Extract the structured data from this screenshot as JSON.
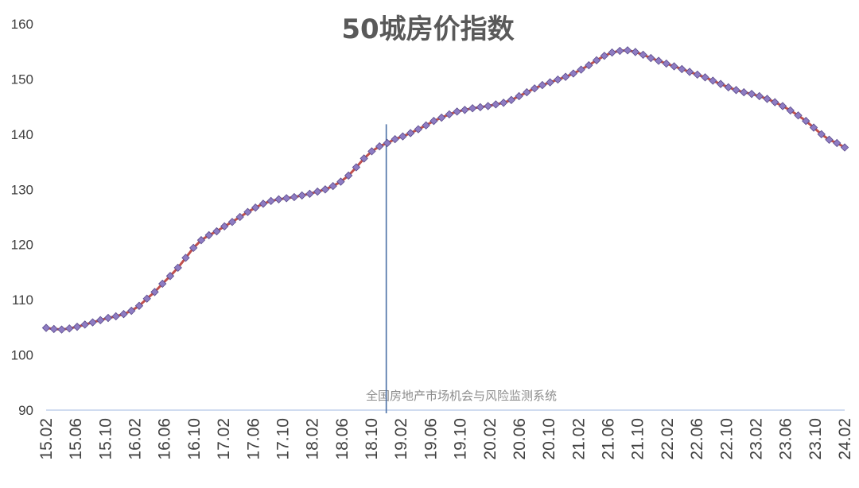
{
  "chart_data": {
    "type": "line",
    "title": "50城房价指数",
    "xlabel": "",
    "ylabel": "",
    "ylim": [
      90,
      160
    ],
    "yticks": [
      90,
      100,
      110,
      120,
      130,
      140,
      150,
      160
    ],
    "grid": false,
    "legend": "none",
    "x_tick_labels": [
      "15.02",
      "15.06",
      "15.10",
      "16.02",
      "16.06",
      "16.10",
      "17.02",
      "17.06",
      "17.10",
      "18.02",
      "18.06",
      "18.10",
      "19.02",
      "19.06",
      "19.10",
      "20.02",
      "20.06",
      "20.10",
      "21.02",
      "21.06",
      "21.10",
      "22.02",
      "22.06",
      "22.10",
      "23.02",
      "23.06",
      "23.10",
      "24.02"
    ],
    "x_start": "2015-02",
    "x_end": "2024-02",
    "reference_line_x": "2018-12",
    "annotation": "全国房地产市场机会与风险监测系统",
    "colors": {
      "line": "#c0504d",
      "marker": "#8e7cc3",
      "marker_edge": "#5a4a8a",
      "reference_line": "#4a6fa5",
      "axis": "#b4c7e7"
    },
    "series": [
      {
        "values": [
          104.9,
          104.7,
          104.6,
          104.8,
          105.1,
          105.5,
          105.9,
          106.3,
          106.7,
          107.0,
          107.4,
          108.0,
          108.9,
          110.2,
          111.4,
          112.9,
          114.3,
          115.8,
          117.6,
          119.4,
          120.8,
          121.7,
          122.4,
          123.3,
          124.1,
          125.0,
          125.9,
          126.7,
          127.4,
          127.9,
          128.2,
          128.4,
          128.6,
          128.9,
          129.2,
          129.6,
          130.0,
          130.6,
          131.4,
          132.5,
          134.0,
          135.6,
          136.9,
          137.8,
          138.4,
          139.1,
          139.6,
          140.2,
          140.9,
          141.6,
          142.4,
          143.0,
          143.6,
          144.1,
          144.4,
          144.7,
          144.9,
          145.1,
          145.4,
          145.7,
          146.2,
          146.9,
          147.6,
          148.3,
          148.9,
          149.4,
          149.9,
          150.4,
          151.0,
          151.7,
          152.5,
          153.4,
          154.2,
          154.8,
          155.1,
          155.2,
          154.9,
          154.4,
          153.8,
          153.3,
          152.8,
          152.3,
          151.8,
          151.3,
          150.8,
          150.3,
          149.7,
          149.1,
          148.5,
          148.0,
          147.6,
          147.3,
          146.9,
          146.4,
          145.8,
          145.1,
          144.3,
          143.4,
          142.4,
          141.2,
          140.0,
          139.0,
          138.4,
          137.6
        ]
      }
    ]
  }
}
